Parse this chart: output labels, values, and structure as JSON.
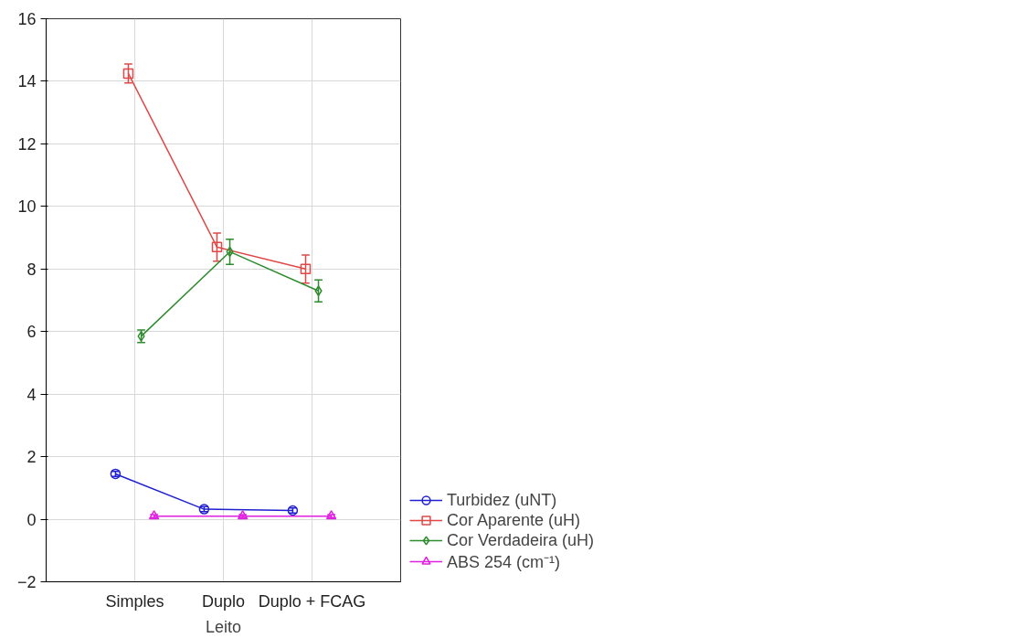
{
  "chart_data": {
    "type": "line",
    "xlabel": "Leito",
    "categories": [
      "Simples",
      "Duplo",
      "Duplo + FCAG"
    ],
    "ylim": [
      -2,
      16
    ],
    "yticks": [
      -2,
      0,
      2,
      4,
      6,
      8,
      10,
      12,
      14,
      16
    ],
    "grid": true,
    "legend": "bottom right",
    "series": [
      {
        "name": "Turbidez (uNT)",
        "color": "#2020d0",
        "marker": "circle",
        "values": [
          1.45,
          0.32,
          0.28
        ],
        "errors": [
          0.08,
          0.08,
          0.08
        ]
      },
      {
        "name": "Cor Aparente (uH)",
        "color": "#e04848",
        "marker": "square",
        "values": [
          14.25,
          8.7,
          8.0
        ],
        "errors": [
          0.3,
          0.45,
          0.45
        ]
      },
      {
        "name": "Cor Verdadeira (uH)",
        "color": "#2e8b2e",
        "marker": "diamond",
        "values": [
          5.85,
          8.55,
          7.3
        ],
        "errors": [
          0.2,
          0.4,
          0.35
        ]
      },
      {
        "name": "ABS 254 (cm⁻¹)",
        "color": "#e020e0",
        "marker": "triangle",
        "values": [
          0.1,
          0.1,
          0.1
        ],
        "errors": [
          0.05,
          0.05,
          0.05
        ]
      }
    ]
  }
}
